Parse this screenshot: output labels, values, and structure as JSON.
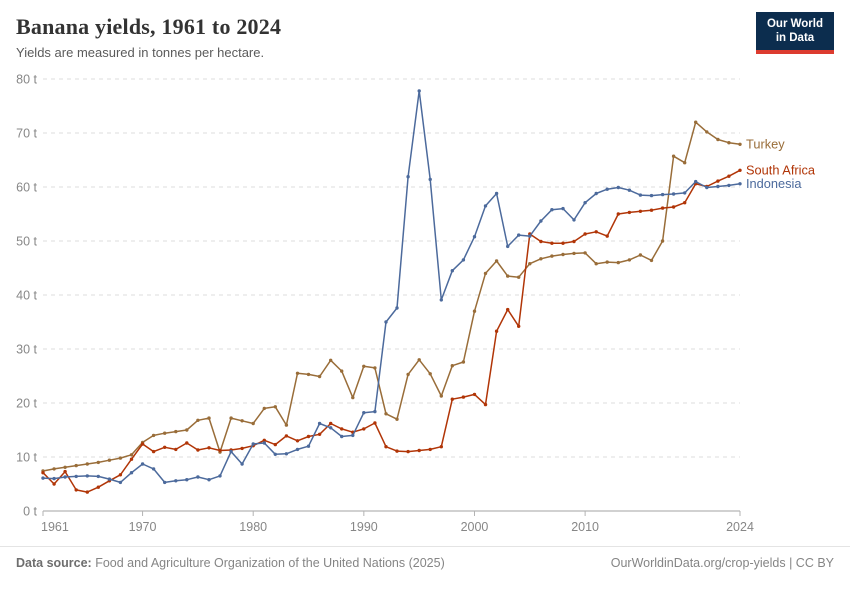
{
  "header": {
    "title": "Banana yields, 1961 to 2024",
    "subtitle": "Yields are measured in tonnes per hectare."
  },
  "logo": {
    "line1": "Our World",
    "line2": "in Data",
    "bg_color": "#0c2d4e",
    "bar_color": "#dc3b2f"
  },
  "chart_data": {
    "type": "line",
    "title": "Banana yields, 1961 to 2024",
    "ylabel": "tonnes per hectare",
    "ylim": [
      0,
      80
    ],
    "y_ticks": [
      0,
      10,
      20,
      30,
      40,
      50,
      60,
      70,
      80
    ],
    "y_tick_suffix": " t",
    "x_ticks": [
      1961,
      1970,
      1980,
      1990,
      2000,
      2010,
      2024
    ],
    "grid": true,
    "legend_position": "line-end-labels",
    "x": [
      1961,
      1962,
      1963,
      1964,
      1965,
      1966,
      1967,
      1968,
      1969,
      1970,
      1971,
      1972,
      1973,
      1974,
      1975,
      1976,
      1977,
      1978,
      1979,
      1980,
      1981,
      1982,
      1983,
      1984,
      1985,
      1986,
      1987,
      1988,
      1989,
      1990,
      1991,
      1992,
      1993,
      1994,
      1995,
      1996,
      1997,
      1998,
      1999,
      2000,
      2001,
      2002,
      2003,
      2004,
      2005,
      2006,
      2007,
      2008,
      2009,
      2010,
      2011,
      2012,
      2013,
      2014,
      2015,
      2016,
      2017,
      2018,
      2019,
      2020,
      2021,
      2022,
      2023,
      2024
    ],
    "series": [
      {
        "name": "Turkey",
        "color": "#996D39",
        "values": [
          7.4,
          7.8,
          8.1,
          8.4,
          8.7,
          9.0,
          9.4,
          9.8,
          10.4,
          12.7,
          14.0,
          14.4,
          14.7,
          15.0,
          16.8,
          17.2,
          10.9,
          17.2,
          16.7,
          16.2,
          19.0,
          19.3,
          15.9,
          25.5,
          25.3,
          24.9,
          27.9,
          25.9,
          21.0,
          26.8,
          26.5,
          18.0,
          17.0,
          25.3,
          28.0,
          25.4,
          21.3,
          26.9,
          27.6,
          37.0,
          44.0,
          46.3,
          43.5,
          43.3,
          45.8,
          46.7,
          47.2,
          47.5,
          47.7,
          47.8,
          45.8,
          46.1,
          46.0,
          46.5,
          47.4,
          46.4,
          50.0,
          65.7,
          64.5,
          72.0,
          70.2,
          68.8,
          68.2,
          67.9
        ]
      },
      {
        "name": "South Africa",
        "color": "#B13507",
        "values": [
          7.1,
          5.0,
          7.3,
          3.9,
          3.5,
          4.4,
          5.6,
          6.7,
          9.6,
          12.4,
          11.0,
          11.8,
          11.4,
          12.6,
          11.3,
          11.7,
          11.2,
          11.3,
          11.6,
          12.1,
          13.1,
          12.3,
          13.9,
          13.0,
          13.8,
          14.2,
          16.2,
          15.2,
          14.6,
          15.2,
          16.3,
          11.9,
          11.1,
          11.0,
          11.2,
          11.4,
          11.9,
          20.7,
          21.1,
          21.6,
          19.7,
          33.3,
          37.3,
          34.2,
          51.3,
          49.9,
          49.6,
          49.6,
          49.9,
          51.3,
          51.7,
          50.9,
          55.0,
          55.3,
          55.5,
          55.7,
          56.1,
          56.3,
          57.1,
          60.6,
          60.1,
          61.1,
          62.0,
          63.1
        ]
      },
      {
        "name": "Indonesia",
        "color": "#4C6A9C",
        "values": [
          6.1,
          6.0,
          6.3,
          6.4,
          6.5,
          6.4,
          5.9,
          5.3,
          7.1,
          8.7,
          7.8,
          5.3,
          5.6,
          5.8,
          6.3,
          5.8,
          6.5,
          11.0,
          8.7,
          12.4,
          12.6,
          10.5,
          10.6,
          11.4,
          12.0,
          16.2,
          15.4,
          13.8,
          14.0,
          18.2,
          18.4,
          35.0,
          37.6,
          61.9,
          77.8,
          61.4,
          39.1,
          44.5,
          46.5,
          50.8,
          56.5,
          58.8,
          49.0,
          51.1,
          50.9,
          53.7,
          55.8,
          56.0,
          53.9,
          57.1,
          58.8,
          59.6,
          59.9,
          59.4,
          58.5,
          58.4,
          58.6,
          58.7,
          58.9,
          61.0,
          59.9,
          60.1,
          60.3,
          60.6
        ]
      }
    ]
  },
  "footer": {
    "datasource_label": "Data source:",
    "datasource_text": "Food and Agriculture Organization of the United Nations (2025)",
    "link": "OurWorldinData.org/crop-yields",
    "separator": "|",
    "license": "CC BY"
  }
}
